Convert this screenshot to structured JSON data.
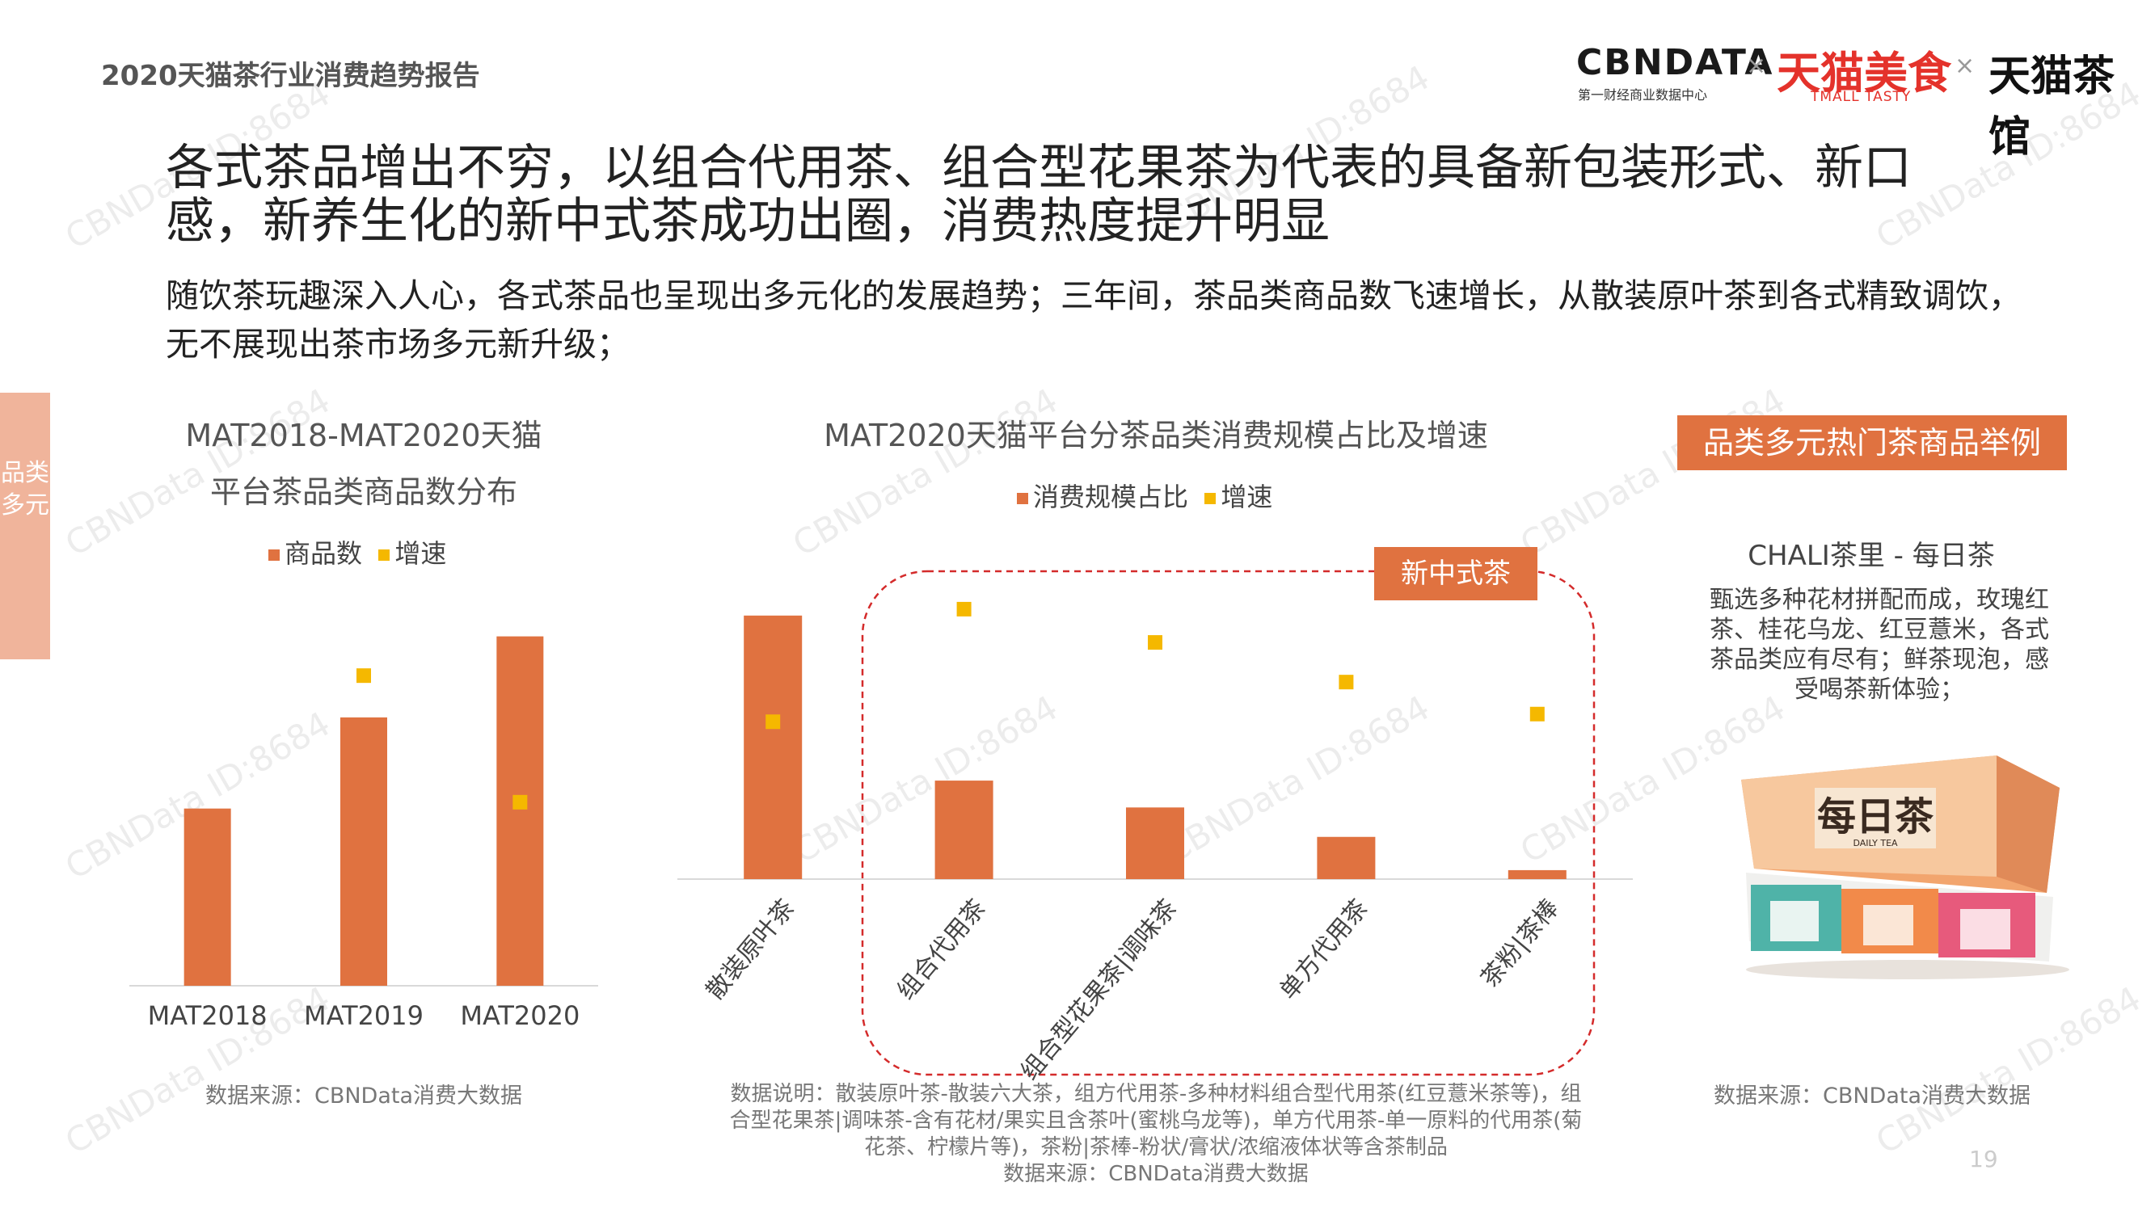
{
  "report_title": "2020天猫茶行业消费趋势报告",
  "logos": {
    "cbndata": "CBNDATA",
    "cbndata_sub": "第一财经商业数据中心",
    "times": "×",
    "tmall_tasty": "天猫美食",
    "tmall_tasty_sub": "TMALL TASTY",
    "tmall_teahouse": "天猫茶馆"
  },
  "headline": "各式茶品增出不穷，以组合代用茶、组合型花果茶为代表的具备新包装形式、新口感，新养生化的新中式茶成功出圈，消费热度提升明显",
  "subtext": "随饮茶玩趣深入人心，各式茶品也呈现出多元化的发展趋势；三年间，茶品类商品数飞速增长，从散装原叶茶到各式精致调饮，无不展现出茶市场多元新升级；",
  "side_tab": "品类多元",
  "watermark": "CBNData ID:8684",
  "chart_data": [
    {
      "type": "bar",
      "title_line1": "MAT2018-MAT2020天猫",
      "title_line2": "平台茶品类商品数分布",
      "categories": [
        "MAT2018",
        "MAT2019",
        "MAT2020"
      ],
      "series": [
        {
          "name": "商品数",
          "values": [
            140,
            212,
            276
          ],
          "color": "#e07240"
        },
        {
          "name": "增速",
          "values": [
            null,
            245,
            145
          ],
          "color": "#f5b800"
        }
      ],
      "ylim": [
        0,
        300
      ],
      "source": "数据来源：CBNData消费大数据"
    },
    {
      "type": "bar",
      "title": "MAT2020天猫平台分茶品类消费规模占比及增速",
      "categories": [
        "散装原叶茶",
        "组合代用茶",
        "组合型花果茶|调味茶",
        "单方代用茶",
        "茶粉|茶棒"
      ],
      "series": [
        {
          "name": "消费规模占比",
          "values": [
            206,
            77,
            56,
            33,
            7
          ],
          "color": "#e07240"
        },
        {
          "name": "增速",
          "values": [
            123,
            211,
            185,
            154,
            129
          ],
          "color": "#f5b800"
        }
      ],
      "ylim": [
        0,
        240
      ],
      "highlight_label": "新中式茶",
      "note_lines": [
        "数据说明：散装原叶茶-散装六大茶，组方代用茶-多种材料组合型代用茶(红豆薏米茶等)，组",
        "合型花果茶|调味茶-含有花材/果实且含茶叶(蜜桃乌龙等)，单方代用茶-单一原料的代用茶(菊",
        "花茶、柠檬片等)，茶粉|茶棒-粉状/膏状/浓缩液体状等含茶制品",
        "数据来源：CBNData消费大数据"
      ]
    }
  ],
  "example": {
    "label": "品类多元热门茶商品举例",
    "product_name": "CHALI茶里 - 每日茶",
    "product_desc": "甄选多种花材拼配而成，玫瑰红茶、桂花乌龙、红豆薏米，各式茶品类应有尽有；鲜茶现泡，感受喝茶新体验；",
    "box_text": "每日茶",
    "box_sub": "DAILY TEA",
    "source": "数据来源：CBNData消费大数据"
  },
  "page_number": "19"
}
